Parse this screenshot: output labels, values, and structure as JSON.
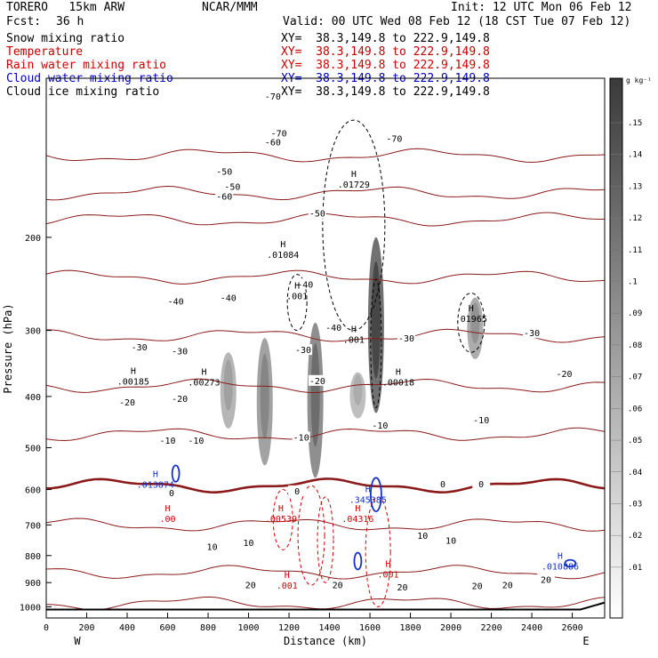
{
  "header": {
    "model": "TORERO   15km ARW",
    "center": "NCAR/MMM",
    "init": "Init: 12 UTC Mon 06 Feb 12",
    "fcst_label": "Fcst:",
    "fcst_value": "36 h",
    "valid": "Valid: 00 UTC Wed 08 Feb 12 (18 CST Tue 07 Feb 12)"
  },
  "fields": [
    {
      "name": "Snow mixing ratio",
      "range": "XY=  38.3,149.8 to 222.9,149.8",
      "color": "#000000"
    },
    {
      "name": "Temperature",
      "range": "XY=  38.3,149.8 to 222.9,149.8",
      "color": "#c00000"
    },
    {
      "name": "Rain water mixing ratio",
      "range": "XY=  38.3,149.8 to 222.9,149.8",
      "color": "#d00000"
    },
    {
      "name": "Cloud water mixing ratio",
      "range": "XY=  38.3,149.8 to 222.9,149.8",
      "color": "#0000c0"
    },
    {
      "name": "Cloud ice mixing ratio",
      "range": "XY=  38.3,149.8 to 222.9,149.8",
      "color": "#000000"
    }
  ],
  "colorbar": {
    "unit": "g kg⁻¹",
    "ticks": [
      ".01",
      ".02",
      ".03",
      ".04",
      ".05",
      ".06",
      ".07",
      ".08",
      ".09",
      ".1",
      ".11",
      ".12",
      ".13",
      ".14",
      ".15"
    ]
  },
  "chart_data": {
    "type": "contour",
    "x_axis": {
      "label": "Distance (km)",
      "range": [
        0,
        2760
      ],
      "ticks": [
        0,
        200,
        400,
        600,
        800,
        1000,
        1200,
        1400,
        1600,
        1800,
        2000,
        2200,
        2400,
        2600
      ],
      "left_end": "W",
      "right_end": "E"
    },
    "y_axis": {
      "label": "Pressure (hPa)",
      "range": [
        1050,
        100
      ],
      "ticks": [
        200,
        300,
        400,
        500,
        600,
        700,
        800,
        900,
        1000
      ]
    },
    "temperature_contours": [
      {
        "t": -70,
        "p": 140
      },
      {
        "t": -60,
        "p": 165
      },
      {
        "t": -50,
        "p": 185
      },
      {
        "t": -40,
        "p": 238
      },
      {
        "t": -30,
        "p": 307
      },
      {
        "t": -20,
        "p": 382
      },
      {
        "t": -10,
        "p": 472
      },
      {
        "t": 0,
        "p": 590
      },
      {
        "t": 10,
        "p": 700
      },
      {
        "t": 20,
        "p": 860
      },
      {
        "t": 30,
        "p": 985
      }
    ],
    "temperature_labels": [
      {
        "x": 1120,
        "p": 108,
        "text": "-70"
      },
      {
        "x": 1150,
        "p": 127,
        "text": "-70"
      },
      {
        "x": 1720,
        "p": 130,
        "text": "-70"
      },
      {
        "x": 1120,
        "p": 132,
        "text": "-60"
      },
      {
        "x": 880,
        "p": 150,
        "text": "-50"
      },
      {
        "x": 920,
        "p": 160,
        "text": "-50"
      },
      {
        "x": 880,
        "p": 167,
        "text": "-60"
      },
      {
        "x": 1340,
        "p": 180,
        "text": "-50"
      },
      {
        "x": 1280,
        "p": 245,
        "text": "-40"
      },
      {
        "x": 900,
        "p": 260,
        "text": "-40"
      },
      {
        "x": 1420,
        "p": 296,
        "text": "-40"
      },
      {
        "x": 640,
        "p": 264,
        "text": "-40"
      },
      {
        "x": 1780,
        "p": 310,
        "text": "-30"
      },
      {
        "x": 2400,
        "p": 303,
        "text": "-30"
      },
      {
        "x": 460,
        "p": 322,
        "text": "-30"
      },
      {
        "x": 660,
        "p": 328,
        "text": "-30"
      },
      {
        "x": 1270,
        "p": 326,
        "text": "-30"
      },
      {
        "x": 2560,
        "p": 362,
        "text": "-20"
      },
      {
        "x": 1340,
        "p": 373,
        "text": "-20"
      },
      {
        "x": 400,
        "p": 410,
        "text": "-20"
      },
      {
        "x": 660,
        "p": 403,
        "text": "-20"
      },
      {
        "x": 2150,
        "p": 443,
        "text": "-10"
      },
      {
        "x": 1650,
        "p": 453,
        "text": "-10"
      },
      {
        "x": 600,
        "p": 484,
        "text": "-10"
      },
      {
        "x": 740,
        "p": 484,
        "text": "-10"
      },
      {
        "x": 1260,
        "p": 477,
        "text": "-10"
      },
      {
        "x": 620,
        "p": 608,
        "text": "0"
      },
      {
        "x": 1240,
        "p": 603,
        "text": "0"
      },
      {
        "x": 1960,
        "p": 585,
        "text": "0"
      },
      {
        "x": 2150,
        "p": 585,
        "text": "0"
      },
      {
        "x": 820,
        "p": 768,
        "text": "10"
      },
      {
        "x": 1000,
        "p": 756,
        "text": "10"
      },
      {
        "x": 1860,
        "p": 733,
        "text": "10"
      },
      {
        "x": 2000,
        "p": 748,
        "text": "10"
      },
      {
        "x": 1010,
        "p": 908,
        "text": "20"
      },
      {
        "x": 1440,
        "p": 908,
        "text": "20"
      },
      {
        "x": 1760,
        "p": 916,
        "text": "20"
      },
      {
        "x": 2130,
        "p": 912,
        "text": "20"
      },
      {
        "x": 2280,
        "p": 908,
        "text": "20"
      },
      {
        "x": 2470,
        "p": 887,
        "text": "20"
      }
    ],
    "maxima": [
      {
        "x": 1520,
        "p": 156,
        "value": ".01729",
        "field": "cloud_ice"
      },
      {
        "x": 1170,
        "p": 212,
        "value": ".01084",
        "field": "cloud_ice"
      },
      {
        "x": 1240,
        "p": 254,
        "value": ".001",
        "field": "cloud_ice"
      },
      {
        "x": 2100,
        "p": 280,
        "value": ".01965",
        "field": "cloud_ice"
      },
      {
        "x": 1520,
        "p": 307,
        "value": ".001",
        "field": "cloud_ice"
      },
      {
        "x": 430,
        "p": 368,
        "value": ".00185",
        "field": "snow"
      },
      {
        "x": 780,
        "p": 370,
        "value": ".00273",
        "field": "snow"
      },
      {
        "x": 1740,
        "p": 370,
        "value": ".00018",
        "field": "snow"
      },
      {
        "x": 540,
        "p": 577,
        "value": ".013874",
        "field": "cloud_water"
      },
      {
        "x": 1590,
        "p": 617,
        "value": ".345385",
        "field": "cloud_water"
      },
      {
        "x": 2540,
        "p": 825,
        "value": ".010886",
        "field": "cloud_water"
      },
      {
        "x": 600,
        "p": 670,
        "value": ".00",
        "field": "rain"
      },
      {
        "x": 1160,
        "p": 670,
        "value": ".00539",
        "field": "rain"
      },
      {
        "x": 1540,
        "p": 670,
        "value": ".04316",
        "field": "rain"
      },
      {
        "x": 1190,
        "p": 896,
        "value": ".001",
        "field": "rain"
      },
      {
        "x": 1690,
        "p": 853,
        "value": ".001",
        "field": "rain"
      }
    ],
    "snow_shading": [
      {
        "x": 900,
        "p_top": 330,
        "p_bot": 460,
        "max": 0.06
      },
      {
        "x": 1080,
        "p_top": 310,
        "p_bot": 540,
        "max": 0.08
      },
      {
        "x": 1330,
        "p_top": 290,
        "p_bot": 570,
        "max": 0.1
      },
      {
        "x": 1540,
        "p_top": 360,
        "p_bot": 440,
        "max": 0.05
      },
      {
        "x": 1630,
        "p_top": 200,
        "p_bot": 430,
        "max": 0.13
      },
      {
        "x": 2120,
        "p_top": 260,
        "p_bot": 340,
        "max": 0.07
      }
    ]
  }
}
